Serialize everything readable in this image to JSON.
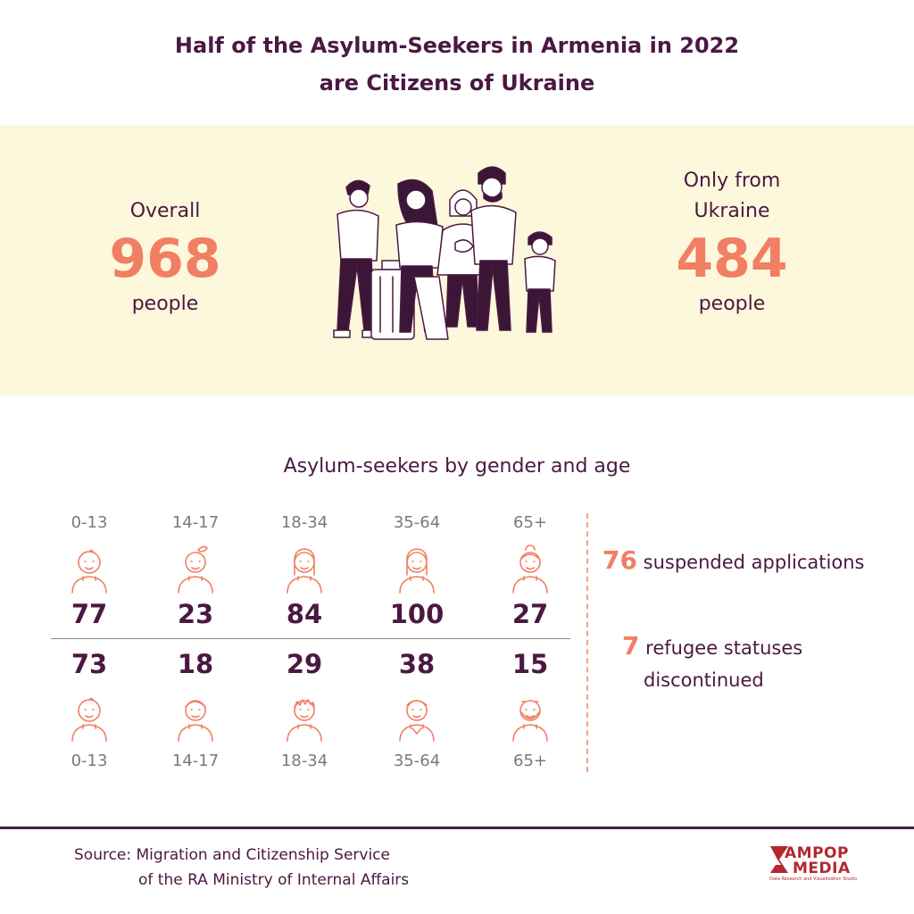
{
  "title": {
    "line1": "Half of the Asylum-Seekers in Armenia in 2022",
    "line2": "are Citizens of Ukraine"
  },
  "overall": {
    "label": "Overall",
    "value": "968",
    "unit": "people"
  },
  "ukraine": {
    "label_line1": "Only from",
    "label_line2": "Ukraine",
    "value": "484",
    "unit": "people"
  },
  "chart_data": {
    "type": "table",
    "title": "Asylum-seekers by gender and age",
    "age_groups": [
      "0-13",
      "14-17",
      "18-34",
      "35-64",
      "65+"
    ],
    "female_counts": [
      "77",
      "23",
      "84",
      "100",
      "27"
    ],
    "male_counts": [
      "73",
      "18",
      "29",
      "38",
      "15"
    ]
  },
  "side": {
    "suspended_value": "76",
    "suspended_label": "suspended applications",
    "refugee_value": "7",
    "refugee_label_line1": "refugee statuses",
    "refugee_label_line2": "discontinued"
  },
  "source": {
    "line1": "Source: Migration and Citizenship Service",
    "line2": "of the RA Ministry of Internal Affairs"
  },
  "logo": {
    "line1": "AMPOP",
    "line2": "MEDIA",
    "tagline": "Data Research and Visualization Studio"
  },
  "icons": {
    "female": [
      "baby-girl-icon",
      "girl-icon",
      "young-woman-icon",
      "woman-icon",
      "elderly-woman-icon"
    ],
    "male": [
      "baby-boy-icon",
      "boy-icon",
      "young-man-icon",
      "man-icon",
      "elderly-man-icon"
    ]
  },
  "colors": {
    "accent": "#f07f63",
    "primary": "#4a1942",
    "band": "#fdf7dc"
  }
}
